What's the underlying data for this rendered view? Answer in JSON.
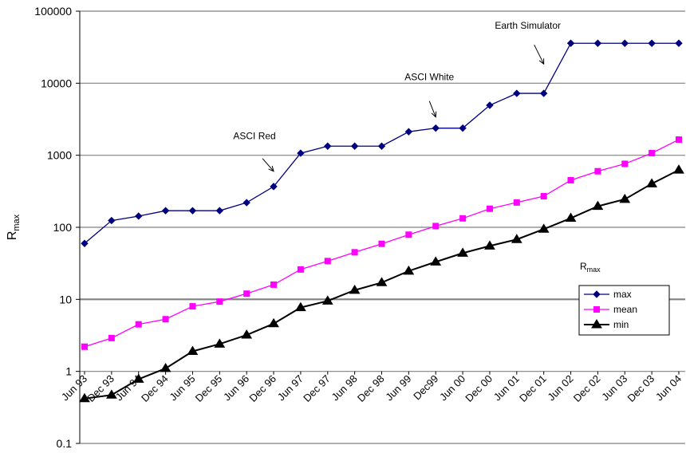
{
  "chart_data": {
    "type": "line",
    "scale": "log",
    "ylim": [
      0.1,
      100000
    ],
    "ylabel_main": "R",
    "ylabel_sub": "max",
    "yticks": [
      "0.1",
      "1",
      "10",
      "100",
      "1000",
      "10000",
      "100000"
    ],
    "categories": [
      "Jun 93",
      "Dec 93",
      "Jun 94",
      "Dec 94",
      "Jun 95",
      "Dec 95",
      "Jun 96",
      "Dec 96",
      "Jun 97",
      "Dec 97",
      "Jun 98",
      "Dec 98",
      "Jun 99",
      "Dec99",
      "Jun 00",
      "Dec 00",
      "Jun 01",
      "Dec 01",
      "Jun 02",
      "Dec 02",
      "Jun 03",
      "Dec 03",
      "Jun 04"
    ],
    "series": [
      {
        "name": "max",
        "color": "#000080",
        "marker": "diamond",
        "values": [
          59.7,
          124,
          143,
          170,
          170,
          170,
          220,
          368,
          1068,
          1338,
          1338,
          1338,
          2121,
          2379,
          2379,
          4938,
          7226,
          7226,
          35860,
          35860,
          35860,
          35860,
          35860
        ]
      },
      {
        "name": "mean",
        "color": "#ff00ff",
        "marker": "square",
        "values": [
          2.2,
          2.9,
          4.5,
          5.3,
          8.0,
          9.3,
          12,
          16,
          26,
          34,
          45,
          59,
          79,
          104,
          133,
          181,
          221,
          270,
          450,
          600,
          760,
          1070,
          1650
        ]
      },
      {
        "name": "min",
        "color": "#000000",
        "marker": "triangle",
        "values": [
          0.42,
          0.47,
          0.78,
          1.1,
          1.9,
          2.4,
          3.2,
          4.6,
          7.7,
          9.5,
          13.4,
          17.1,
          24.7,
          33.1,
          43.8,
          55.1,
          67.8,
          94.3,
          134,
          196,
          245,
          403,
          625
        ]
      }
    ],
    "annotations": [
      {
        "text": "ASCI Red",
        "target_index": 7,
        "target_value": 600
      },
      {
        "text": "ASCI White",
        "target_index": 13,
        "target_value": 3400
      },
      {
        "text": "Earth Simulator",
        "target_index": 17,
        "target_value": 18500
      }
    ],
    "legend": {
      "title_main": "R",
      "title_sub": "max",
      "placement": "right"
    }
  }
}
